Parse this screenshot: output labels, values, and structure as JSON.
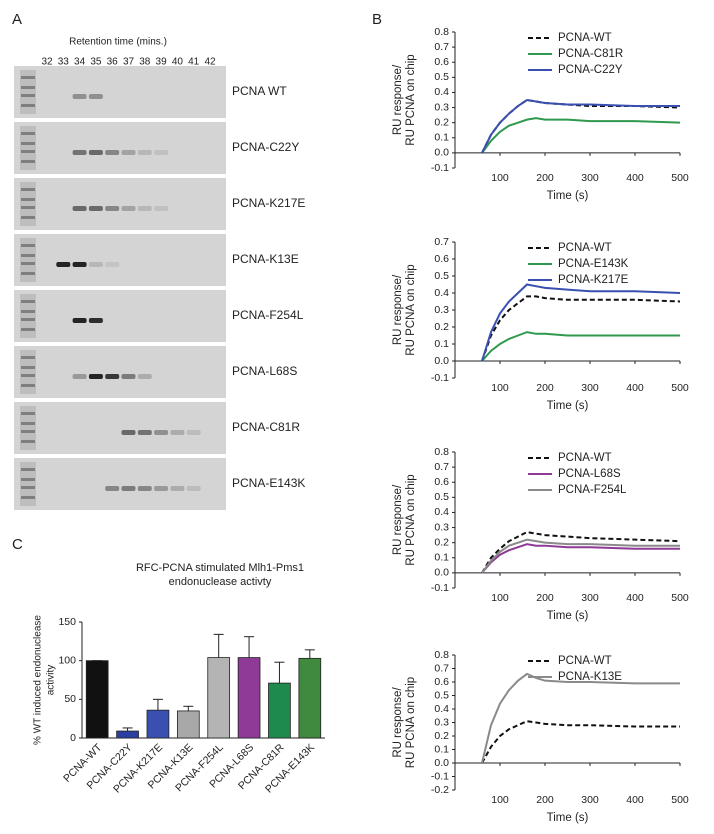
{
  "panels": {
    "a": "A",
    "b": "B",
    "c": "C"
  },
  "gel": {
    "title": "Retention time (mins.)",
    "fractions": [
      "32",
      "33",
      "34",
      "35",
      "36",
      "37",
      "38",
      "39",
      "40",
      "41",
      "42"
    ],
    "lanes": [
      "PCNA WT",
      "PCNA-C22Y",
      "PCNA-K217E",
      "PCNA-K13E",
      "PCNA-F254L",
      "PCNA-L68S",
      "PCNA-C81R",
      "PCNA-E143K"
    ]
  },
  "chart_data": [
    {
      "type": "line",
      "xlabel": "Time (s)",
      "ylabel": [
        "RU response/",
        "RU PCNA on chip"
      ],
      "x": [
        60,
        80,
        100,
        120,
        140,
        160,
        180,
        200,
        250,
        300,
        400,
        500
      ],
      "xlim": [
        0,
        500
      ],
      "xticks": [
        100,
        200,
        300,
        400,
        500
      ],
      "ylim": [
        -0.1,
        0.8
      ],
      "yticks": [
        -0.1,
        {
          "value": 0,
          "label": "0.0"
        },
        0.1,
        0.2,
        0.3,
        0.4,
        0.5,
        0.6,
        0.7,
        0.8
      ],
      "series": [
        {
          "name": "PCNA-WT",
          "color": "#111111",
          "style": "dashed",
          "values": [
            0,
            0.12,
            0.2,
            0.26,
            0.31,
            0.35,
            0.34,
            0.33,
            0.32,
            0.31,
            0.31,
            0.3
          ]
        },
        {
          "name": "PCNA-C81R",
          "color": "#2f9a4f",
          "style": "solid",
          "values": [
            0,
            0.08,
            0.14,
            0.18,
            0.2,
            0.22,
            0.23,
            0.22,
            0.22,
            0.21,
            0.21,
            0.2
          ]
        },
        {
          "name": "PCNA-C22Y",
          "color": "#3a50b0",
          "style": "solid",
          "values": [
            0,
            0.12,
            0.2,
            0.26,
            0.31,
            0.35,
            0.34,
            0.33,
            0.32,
            0.32,
            0.31,
            0.31
          ]
        }
      ]
    },
    {
      "type": "line",
      "xlabel": "Time (s)",
      "ylabel": [
        "RU response/",
        "RU PCNA on chip"
      ],
      "x": [
        60,
        80,
        100,
        120,
        140,
        160,
        180,
        200,
        250,
        300,
        400,
        500
      ],
      "xlim": [
        0,
        500
      ],
      "xticks": [
        100,
        200,
        300,
        400,
        500
      ],
      "ylim": [
        -0.1,
        0.7
      ],
      "yticks": [
        -0.1,
        {
          "value": 0,
          "label": "0.0"
        },
        0.1,
        0.2,
        0.3,
        0.4,
        0.5,
        0.6,
        0.7
      ],
      "series": [
        {
          "name": "PCNA-WT",
          "color": "#111111",
          "style": "dashed",
          "values": [
            0,
            0.15,
            0.24,
            0.3,
            0.34,
            0.38,
            0.38,
            0.37,
            0.36,
            0.36,
            0.36,
            0.35
          ]
        },
        {
          "name": "PCNA-E143K",
          "color": "#2f9a4f",
          "style": "solid",
          "values": [
            0,
            0.06,
            0.1,
            0.13,
            0.15,
            0.17,
            0.16,
            0.16,
            0.15,
            0.15,
            0.15,
            0.15
          ]
        },
        {
          "name": "PCNA-K217E",
          "color": "#3a50b0",
          "style": "solid",
          "values": [
            0,
            0.17,
            0.28,
            0.35,
            0.4,
            0.45,
            0.44,
            0.43,
            0.42,
            0.41,
            0.41,
            0.4
          ]
        }
      ]
    },
    {
      "type": "line",
      "xlabel": "Time (s)",
      "ylabel": [
        "RU response/",
        "RU PCNA on chip"
      ],
      "x": [
        60,
        80,
        100,
        120,
        140,
        160,
        180,
        200,
        250,
        300,
        400,
        500
      ],
      "xlim": [
        0,
        500
      ],
      "xticks": [
        100,
        200,
        300,
        400,
        500
      ],
      "ylim": [
        -0.1,
        0.8
      ],
      "yticks": [
        -0.1,
        {
          "value": 0,
          "label": "0.0"
        },
        0.1,
        0.2,
        0.3,
        0.4,
        0.5,
        0.6,
        0.7,
        0.8
      ],
      "series": [
        {
          "name": "PCNA-WT",
          "color": "#111111",
          "style": "dashed",
          "values": [
            0,
            0.1,
            0.16,
            0.21,
            0.24,
            0.27,
            0.26,
            0.25,
            0.24,
            0.23,
            0.22,
            0.21
          ]
        },
        {
          "name": "PCNA-L68S",
          "color": "#8e3a96",
          "style": "solid",
          "values": [
            0,
            0.07,
            0.12,
            0.15,
            0.17,
            0.19,
            0.18,
            0.18,
            0.17,
            0.17,
            0.16,
            0.16
          ]
        },
        {
          "name": "PCNA-F254L",
          "color": "#8a8a8a",
          "style": "solid",
          "values": [
            0,
            0.08,
            0.14,
            0.18,
            0.2,
            0.22,
            0.21,
            0.2,
            0.19,
            0.19,
            0.18,
            0.18
          ]
        }
      ]
    },
    {
      "type": "line",
      "xlabel": "Time (s)",
      "ylabel": [
        "RU response/",
        "RU PCNA on chip"
      ],
      "x": [
        60,
        80,
        100,
        120,
        140,
        160,
        180,
        200,
        250,
        300,
        400,
        500
      ],
      "xlim": [
        0,
        500
      ],
      "xticks": [
        100,
        200,
        300,
        400,
        500
      ],
      "ylim": [
        -0.2,
        0.8
      ],
      "yticks": [
        -0.2,
        -0.1,
        {
          "value": 0,
          "label": "0.0"
        },
        0.1,
        0.2,
        0.3,
        0.4,
        0.5,
        0.6,
        0.7,
        0.8
      ],
      "series": [
        {
          "name": "PCNA-WT",
          "color": "#111111",
          "style": "dashed",
          "values": [
            0,
            0.12,
            0.2,
            0.25,
            0.28,
            0.31,
            0.3,
            0.29,
            0.28,
            0.28,
            0.27,
            0.27
          ]
        },
        {
          "name": "PCNA-K13E",
          "color": "#8a8a8a",
          "style": "solid",
          "values": [
            0,
            0.28,
            0.44,
            0.54,
            0.61,
            0.66,
            0.63,
            0.61,
            0.6,
            0.6,
            0.59,
            0.59
          ]
        }
      ]
    },
    {
      "type": "bar",
      "title": [
        "RFC-PCNA stimulated Mlh1-Pms1",
        "endonuclease activty"
      ],
      "ylabel": [
        "% WT induced endonuclease",
        "activity"
      ],
      "categories": [
        "PCNA-WT",
        "PCNA-C22Y",
        "PCNA-K217E",
        "PCNA-K13E",
        "PCNA-F254L",
        "PCNA-L68S",
        "PCNA-C81R",
        "PCNA-E143K"
      ],
      "values": [
        100,
        9,
        36,
        35,
        104,
        104,
        71,
        103
      ],
      "errors": [
        0,
        4,
        14,
        6,
        30,
        27,
        27,
        11
      ],
      "colors": [
        "#111111",
        "#2b3fa0",
        "#3a50b0",
        "#a8a8a8",
        "#b4b4b4",
        "#8e3a96",
        "#1e8a4e",
        "#3f8a3f"
      ],
      "ylim": [
        0,
        150
      ],
      "yticks": [
        0,
        50,
        100,
        150
      ]
    }
  ]
}
